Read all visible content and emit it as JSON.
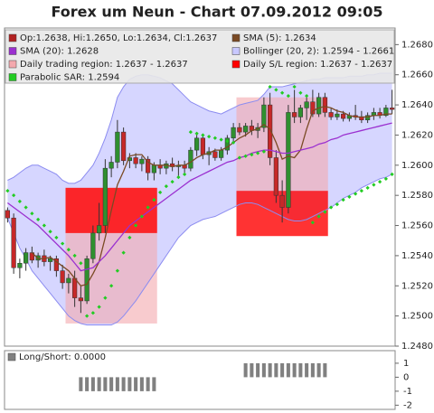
{
  "chart_data": [
    {
      "type": "candlestick",
      "title": "Forex um Neun - Chart 07.09.2012 09:05",
      "name": "Op:1.2638, Hi:1.2650, Lo:1.2634, Cl:1.2637",
      "color": "#b22222",
      "up_color": "#2f8f2f",
      "down_color": "#c62828",
      "open": [
        1.257,
        1.2565,
        1.2532,
        1.2535,
        1.2542,
        1.2537,
        1.254,
        1.2536,
        1.2538,
        1.253,
        1.2522,
        1.2525,
        1.2512,
        1.251,
        1.2538,
        1.2555,
        1.256,
        1.2598,
        1.2602,
        1.2622,
        1.2603,
        1.2605,
        1.2601,
        1.2604,
        1.2595,
        1.26,
        1.2598,
        1.2601,
        1.2599,
        1.26,
        1.2598,
        1.261,
        1.2618,
        1.2607,
        1.2609,
        1.2605,
        1.261,
        1.2618,
        1.2625,
        1.2622,
        1.2626,
        1.2623,
        1.2625,
        1.264,
        1.2605,
        1.258,
        1.2572,
        1.2635,
        1.2632,
        1.2638,
        1.2642,
        1.2634,
        1.2645,
        1.2635,
        1.2632,
        1.2634,
        1.2631,
        1.2633,
        1.2632,
        1.263,
        1.2633,
        1.2635,
        1.2633,
        1.2638
      ],
      "high": [
        1.2572,
        1.2568,
        1.2538,
        1.2545,
        1.2546,
        1.2542,
        1.2544,
        1.254,
        1.254,
        1.2534,
        1.2528,
        1.253,
        1.252,
        1.254,
        1.256,
        1.2575,
        1.2604,
        1.2606,
        1.263,
        1.2625,
        1.2608,
        1.2608,
        1.2606,
        1.2606,
        1.2602,
        1.2604,
        1.2603,
        1.2605,
        1.2603,
        1.2603,
        1.2612,
        1.2622,
        1.262,
        1.2612,
        1.2611,
        1.2612,
        1.262,
        1.2628,
        1.2628,
        1.2628,
        1.263,
        1.2628,
        1.2645,
        1.2648,
        1.261,
        1.259,
        1.264,
        1.265,
        1.264,
        1.2645,
        1.265,
        1.2648,
        1.2648,
        1.2638,
        1.2637,
        1.2636,
        1.2635,
        1.264,
        1.2636,
        1.2635,
        1.2638,
        1.2638,
        1.264,
        1.265
      ],
      "low": [
        1.2562,
        1.2528,
        1.2525,
        1.253,
        1.2535,
        1.2532,
        1.2533,
        1.253,
        1.2526,
        1.2518,
        1.2515,
        1.2506,
        1.2502,
        1.2508,
        1.2535,
        1.255,
        1.2555,
        1.2592,
        1.2598,
        1.26,
        1.2598,
        1.2598,
        1.2596,
        1.259,
        1.259,
        1.2594,
        1.2594,
        1.2596,
        1.2592,
        1.2595,
        1.2596,
        1.2606,
        1.2604,
        1.26,
        1.2603,
        1.2603,
        1.2607,
        1.2615,
        1.262,
        1.2619,
        1.262,
        1.2618,
        1.2622,
        1.26,
        1.2575,
        1.2562,
        1.2568,
        1.2628,
        1.2628,
        1.263,
        1.2632,
        1.2632,
        1.2632,
        1.263,
        1.263,
        1.2629,
        1.2629,
        1.263,
        1.2628,
        1.2628,
        1.263,
        1.2631,
        1.2632,
        1.2634
      ],
      "close": [
        1.2565,
        1.2532,
        1.2535,
        1.2542,
        1.2537,
        1.254,
        1.2536,
        1.2538,
        1.253,
        1.2522,
        1.2525,
        1.2512,
        1.251,
        1.2538,
        1.2555,
        1.256,
        1.2598,
        1.2602,
        1.2622,
        1.2603,
        1.2605,
        1.2601,
        1.2604,
        1.2595,
        1.26,
        1.2598,
        1.2601,
        1.2599,
        1.26,
        1.2598,
        1.261,
        1.2618,
        1.2607,
        1.2609,
        1.2605,
        1.261,
        1.2618,
        1.2625,
        1.2622,
        1.2626,
        1.2623,
        1.2625,
        1.264,
        1.2605,
        1.258,
        1.2572,
        1.2635,
        1.2632,
        1.2638,
        1.2642,
        1.2634,
        1.2645,
        1.2635,
        1.2632,
        1.2634,
        1.2631,
        1.2633,
        1.2632,
        1.263,
        1.2633,
        1.2635,
        1.2633,
        1.2638,
        1.2637
      ],
      "series": [
        {
          "name": "SMA (5): 1.2634",
          "color": "#7a4a24",
          "style": "line",
          "values": [
            null,
            null,
            null,
            null,
            1.2542,
            1.2538,
            1.2538,
            1.2539,
            1.2536,
            1.2533,
            1.253,
            1.2525,
            1.252,
            1.2521,
            1.2528,
            1.2536,
            1.2552,
            1.257,
            1.2587,
            1.2596,
            1.2606,
            1.2607,
            1.2607,
            1.2602,
            1.26,
            1.26,
            1.26,
            1.2599,
            1.26,
            1.26,
            1.2602,
            1.2605,
            1.2607,
            1.2608,
            1.261,
            1.261,
            1.2612,
            1.2615,
            1.2618,
            1.262,
            1.2623,
            1.2624,
            1.2627,
            1.2624,
            1.2615,
            1.2604,
            1.2606,
            1.2605,
            1.261,
            1.2624,
            1.2636,
            1.2638,
            1.2639,
            1.2638,
            1.2636,
            1.2635,
            1.2633,
            1.2632,
            1.2632,
            1.2632,
            1.2633,
            1.2633,
            1.2634,
            1.2634
          ]
        },
        {
          "name": "SMA (20): 1.2628",
          "color": "#9b30d0",
          "style": "line",
          "values": [
            1.2575,
            1.2572,
            1.2569,
            1.2566,
            1.2563,
            1.256,
            1.2556,
            1.2552,
            1.2548,
            1.2544,
            1.254,
            1.2535,
            1.253,
            1.2531,
            1.2532,
            1.2536,
            1.254,
            1.2545,
            1.255,
            1.2555,
            1.256,
            1.2563,
            1.2566,
            1.2569,
            1.2572,
            1.2575,
            1.2578,
            1.2581,
            1.2584,
            1.2587,
            1.259,
            1.2592,
            1.2594,
            1.2596,
            1.2598,
            1.26,
            1.2602,
            1.2603,
            1.2605,
            1.2606,
            1.2608,
            1.2609,
            1.261,
            1.261,
            1.2609,
            1.2608,
            1.2608,
            1.2609,
            1.261,
            1.2611,
            1.2612,
            1.2614,
            1.2615,
            1.2617,
            1.2618,
            1.262,
            1.2621,
            1.2622,
            1.2623,
            1.2624,
            1.2625,
            1.2626,
            1.2627,
            1.2628
          ]
        },
        {
          "name": "Bollinger (20, 2): 1.2594 - 1.2661",
          "color": "#8c8cf0",
          "fill": "#c8c8ff",
          "style": "band",
          "upper": [
            1.259,
            1.2592,
            1.2595,
            1.2598,
            1.26,
            1.26,
            1.2598,
            1.2596,
            1.2594,
            1.259,
            1.2588,
            1.2588,
            1.259,
            1.2595,
            1.26,
            1.2608,
            1.2618,
            1.263,
            1.2645,
            1.2652,
            1.2657,
            1.2659,
            1.266,
            1.266,
            1.2659,
            1.2658,
            1.2656,
            1.2654,
            1.265,
            1.2646,
            1.2642,
            1.264,
            1.2638,
            1.2636,
            1.2635,
            1.2634,
            1.2636,
            1.2638,
            1.264,
            1.2641,
            1.2642,
            1.2643,
            1.2647,
            1.2652,
            1.2652,
            1.2652,
            1.2653,
            1.2654,
            1.2655,
            1.2656,
            1.2657,
            1.2657,
            1.2658,
            1.2658,
            1.2658,
            1.2658,
            1.2659,
            1.2659,
            1.2659,
            1.266,
            1.266,
            1.2661,
            1.2661,
            1.2661
          ],
          "lower": [
            1.2565,
            1.2555,
            1.2545,
            1.2538,
            1.253,
            1.2525,
            1.252,
            1.2515,
            1.251,
            1.2505,
            1.25,
            1.2497,
            1.2495,
            1.2494,
            1.2494,
            1.2494,
            1.2494,
            1.2494,
            1.2496,
            1.25,
            1.2505,
            1.251,
            1.2516,
            1.2522,
            1.2528,
            1.2534,
            1.254,
            1.2546,
            1.2552,
            1.2556,
            1.256,
            1.2562,
            1.2564,
            1.2565,
            1.2566,
            1.2568,
            1.257,
            1.2572,
            1.2574,
            1.2575,
            1.2575,
            1.2574,
            1.2572,
            1.257,
            1.2568,
            1.2566,
            1.2564,
            1.2563,
            1.2563,
            1.2564,
            1.2566,
            1.2568,
            1.257,
            1.2572,
            1.2575,
            1.2578,
            1.258,
            1.2582,
            1.2585,
            1.2587,
            1.2589,
            1.2591,
            1.2592,
            1.2594
          ]
        },
        {
          "name": "Parabolic SAR: 1.2594",
          "color": "#22cc22",
          "style": "dots",
          "values": [
            1.2583,
            1.258,
            1.2576,
            1.2572,
            1.2568,
            1.2564,
            1.256,
            1.2556,
            1.2552,
            1.2548,
            1.2544,
            1.254,
            1.2535,
            1.25,
            1.2502,
            1.2506,
            1.2512,
            1.252,
            1.253,
            1.2542,
            1.2552,
            1.256,
            1.2566,
            1.2572,
            1.2577,
            1.2582,
            1.2586,
            1.2589,
            1.2592,
            1.2594,
            1.2622,
            1.2621,
            1.262,
            1.2619,
            1.2618,
            1.2617,
            1.2616,
            1.2615,
            1.2605,
            1.2606,
            1.2607,
            1.2608,
            1.2609,
            1.2652,
            1.265,
            1.2648,
            1.2646,
            1.2652,
            1.2648,
            1.2646,
            1.2562,
            1.2566,
            1.2569,
            1.2572,
            1.2574,
            1.2577,
            1.2579,
            1.2581,
            1.2583,
            1.2585,
            1.2587,
            1.2589,
            1.2591,
            1.2594
          ]
        }
      ],
      "regions": [
        {
          "name": "Daily trading region: 1.2637 - 1.2637",
          "color": "#f4a9ae",
          "spans": [
            {
              "from": 10,
              "to": 24,
              "low": 1.2495,
              "high": 1.2585
            },
            {
              "from": 38,
              "to": 52,
              "low": 1.2583,
              "high": 1.2645
            }
          ]
        },
        {
          "name": "Daily S/L region: 1.2637 - 1.2637",
          "color": "#ff0000",
          "spans": [
            {
              "from": 10,
              "to": 24,
              "low": 1.2555,
              "high": 1.2585
            },
            {
              "from": 38,
              "to": 52,
              "low": 1.2553,
              "high": 1.2583
            }
          ]
        }
      ],
      "ylim": [
        1.248,
        1.2691
      ],
      "yticks": [
        {
          "value": 1.248,
          "label": "1.2480"
        },
        {
          "value": 1.25,
          "label": "1.2500"
        },
        {
          "value": 1.252,
          "label": "1.2520"
        },
        {
          "value": 1.254,
          "label": "1.2540"
        },
        {
          "value": 1.256,
          "label": "1.2560"
        },
        {
          "value": 1.258,
          "label": "1.2580"
        },
        {
          "value": 1.26,
          "label": "1.2600"
        },
        {
          "value": 1.262,
          "label": "1.2620"
        },
        {
          "value": 1.264,
          "label": "1.2640"
        },
        {
          "value": 1.266,
          "label": "1.2660"
        },
        {
          "value": 1.268,
          "label": "1.2680"
        }
      ],
      "grid": false
    },
    {
      "type": "bar",
      "name": "Long/Short: 0.0000",
      "color": "#808080",
      "values": [
        0,
        0,
        0,
        0,
        0,
        0,
        0,
        0,
        0,
        0,
        0,
        0,
        -1,
        -1,
        -1,
        -1,
        -1,
        -1,
        -1,
        -1,
        -1,
        -1,
        -1,
        -1,
        -1,
        0,
        0,
        0,
        0,
        0,
        0,
        0,
        0,
        0,
        0,
        0,
        0,
        0,
        0,
        1,
        1,
        1,
        1,
        1,
        1,
        1,
        1,
        1,
        1,
        1,
        1,
        1,
        1,
        0,
        0,
        0,
        0,
        0,
        0,
        0,
        0,
        0,
        0,
        0
      ],
      "ylim": [
        -2.3,
        1.9
      ],
      "yticks": [
        1,
        0,
        -1,
        -2
      ],
      "grid": false
    }
  ]
}
